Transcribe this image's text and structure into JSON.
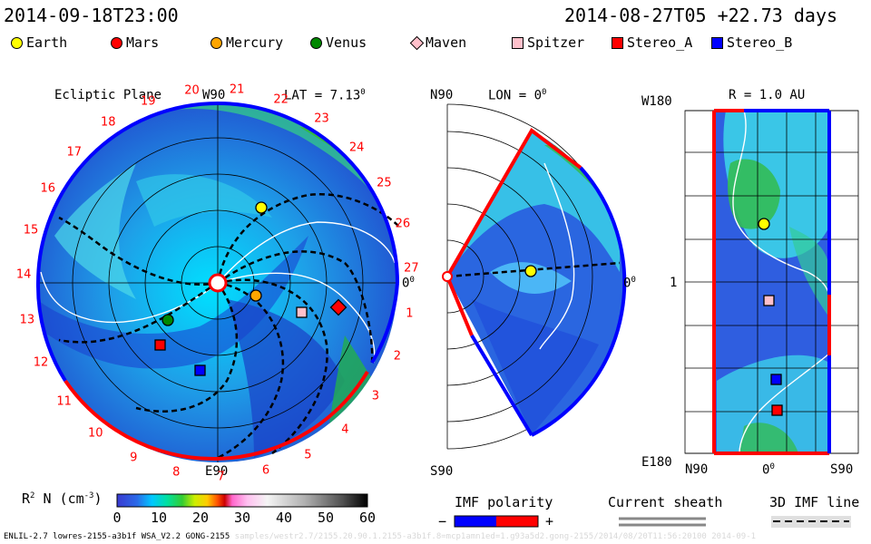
{
  "header": {
    "left_timestamp": "2014-09-18T23:00",
    "right_timestamp": "2014-08-27T05 +22.73 days"
  },
  "legend": [
    {
      "name": "Earth",
      "color": "#ffff00",
      "shape": "circle"
    },
    {
      "name": "Mars",
      "color": "#ff0000",
      "shape": "circle"
    },
    {
      "name": "Mercury",
      "color": "#ffa500",
      "shape": "circle"
    },
    {
      "name": "Venus",
      "color": "#008800",
      "shape": "circle"
    },
    {
      "name": "Maven",
      "color": "#ffc0cb",
      "shape": "diamond"
    },
    {
      "name": "Spitzer",
      "color": "#ffc0cb",
      "shape": "square"
    },
    {
      "name": "Stereo_A",
      "color": "#ff0000",
      "shape": "square"
    },
    {
      "name": "Stereo_B",
      "color": "#0000ff",
      "shape": "square"
    }
  ],
  "ecliptic": {
    "title": "Ecliptic Plane",
    "top_label": "W90",
    "bottom_label": "E90",
    "right_label": "0",
    "right_label_sup": "0",
    "lat_label": "LAT = 7.13",
    "lat_sup": "0",
    "carrington_numbers": [
      "19",
      "20",
      "21",
      "22",
      "23",
      "24",
      "25",
      "26",
      "27",
      "1",
      "2",
      "3",
      "4",
      "5",
      "6",
      "7",
      "8",
      "9",
      "10",
      "11",
      "12",
      "13",
      "14",
      "15",
      "16",
      "17",
      "18"
    ]
  },
  "meridional": {
    "top_label": "N90",
    "bottom_label": "S90",
    "lon_label": "LON = 0",
    "lon_sup": "0",
    "right_label": "0",
    "right_label_sup": "0"
  },
  "radial": {
    "title": "R = 1.0 AU",
    "top_left_label": "W180",
    "bottom_left_label": "E180",
    "mid_left_label": "1",
    "bottom_labels": {
      "left": "N90",
      "center": "0",
      "center_sup": "0",
      "right": "S90"
    }
  },
  "colorbar": {
    "label": "R",
    "label_sup": "2",
    "label_rest": " N (cm",
    "label_unit_sup": "-3",
    "label_end": ")",
    "ticks": [
      "0",
      "10",
      "20",
      "30",
      "40",
      "50",
      "60"
    ]
  },
  "imf_polarity": {
    "title": "IMF polarity",
    "minus": "−",
    "plus": "+"
  },
  "current_sheath": {
    "title": "Current sheath"
  },
  "imf_line": {
    "title": "3D IMF line"
  },
  "footer": {
    "text": "ENLIL-2.7 lowres-2155-a3b1f WSA_V2.2 GONG-2155",
    "faint": "samples/westr2.7/2155.20.90.1.2155-a3b1f.8=mcp1amn1ed=1.g93a5d2.gong-2155/2014/08/20T11:56:20100    2014-09-1"
  },
  "palette": {
    "blue": "#1e3ccc",
    "cyan": "#00e6ff",
    "green": "#22bb44",
    "red_line": "#ff0000",
    "blue_line": "#0000ff"
  }
}
